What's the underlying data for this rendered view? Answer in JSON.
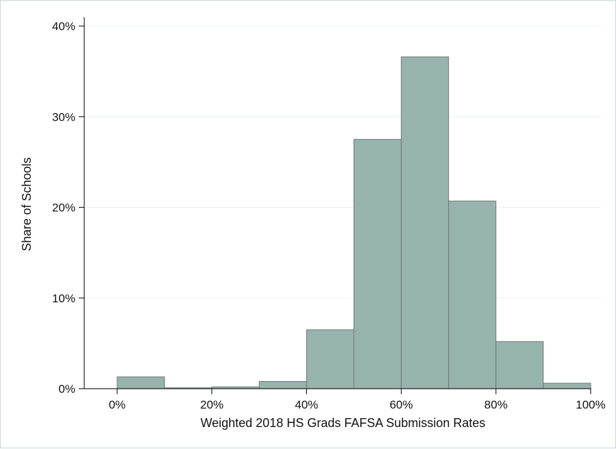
{
  "chart_data": {
    "type": "bar",
    "subtype": "histogram",
    "title": "",
    "xlabel": "Weighted 2018 HS Grads FAFSA Submission Rates",
    "ylabel": "Share of Schools",
    "xlim": [
      -10,
      100
    ],
    "ylim": [
      0,
      40
    ],
    "bin_width": 10,
    "bins": [
      {
        "start": 0,
        "end": 10,
        "value": 1.3
      },
      {
        "start": 10,
        "end": 20,
        "value": 0.1
      },
      {
        "start": 20,
        "end": 30,
        "value": 0.2
      },
      {
        "start": 30,
        "end": 40,
        "value": 0.8
      },
      {
        "start": 40,
        "end": 50,
        "value": 6.5
      },
      {
        "start": 50,
        "end": 60,
        "value": 27.5
      },
      {
        "start": 60,
        "end": 70,
        "value": 36.6
      },
      {
        "start": 70,
        "end": 80,
        "value": 20.7
      },
      {
        "start": 80,
        "end": 90,
        "value": 5.2
      },
      {
        "start": 90,
        "end": 100,
        "value": 0.6
      }
    ],
    "x_ticks": [
      {
        "value": 0,
        "label": "0%"
      },
      {
        "value": 20,
        "label": "20%"
      },
      {
        "value": 40,
        "label": "40%"
      },
      {
        "value": 60,
        "label": "60%"
      },
      {
        "value": 80,
        "label": "80%"
      },
      {
        "value": 100,
        "label": "100%"
      }
    ],
    "y_ticks": [
      {
        "value": 0,
        "label": "0%"
      },
      {
        "value": 10,
        "label": "10%"
      },
      {
        "value": 20,
        "label": "20%"
      },
      {
        "value": 30,
        "label": "30%"
      },
      {
        "value": 40,
        "label": "40%"
      }
    ],
    "grid": true,
    "colors": {
      "bar_fill": "#97b3ad",
      "bar_stroke": "#6f7775",
      "grid": "#eaf0f0",
      "axis": "#222222"
    }
  }
}
